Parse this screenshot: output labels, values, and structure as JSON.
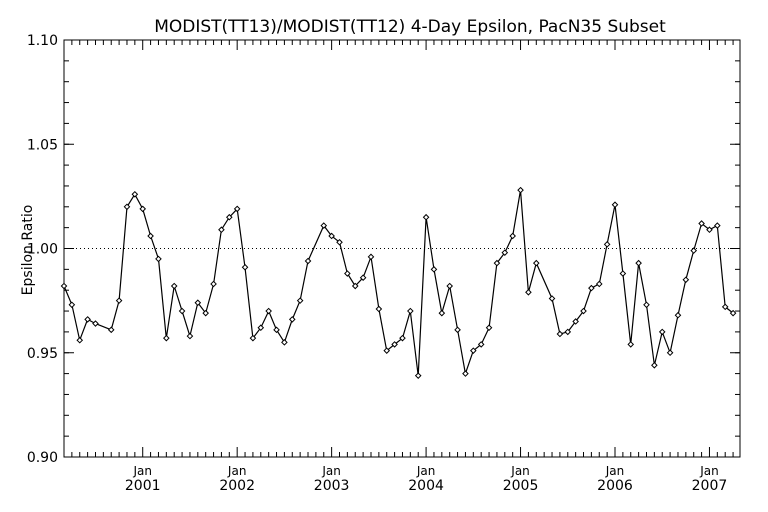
{
  "chart_data": {
    "type": "line",
    "title": "MODIST(TT13)/MODIST(TT12) 4-Day Epsilon, PacN35 Subset",
    "xlabel": "",
    "ylabel": "Epsilon Ratio",
    "ylim": [
      0.9,
      1.1
    ],
    "yticks": [
      "0.90",
      "0.95",
      "1.00",
      "1.05",
      "1.10"
    ],
    "xtick_labels": [
      {
        "month": "Jan",
        "year": "2001"
      },
      {
        "month": "Jan",
        "year": "2002"
      },
      {
        "month": "Jan",
        "year": "2003"
      },
      {
        "month": "Jan",
        "year": "2004"
      },
      {
        "month": "Jan",
        "year": "2005"
      },
      {
        "month": "Jan",
        "year": "2006"
      },
      {
        "month": "Jan",
        "year": "2007"
      }
    ],
    "reference_line": {
      "y": 1.0,
      "style": "dotted"
    },
    "grid": false,
    "marker": "diamond",
    "line_color": "#000000",
    "series": [
      {
        "x": [
          "2000-03-01",
          "2000-04-01",
          "2000-05-01",
          "2000-06-01",
          "2000-07-01",
          "2000-09-01",
          "2000-10-01",
          "2000-11-01",
          "2000-12-01",
          "2001-01-01",
          "2001-02-01",
          "2001-03-01",
          "2001-04-01",
          "2001-05-01",
          "2001-06-01",
          "2001-07-01",
          "2001-08-01",
          "2001-09-01",
          "2001-10-01",
          "2001-11-01",
          "2001-12-01",
          "2002-01-01",
          "2002-02-01",
          "2002-03-01",
          "2002-04-01",
          "2002-05-01",
          "2002-06-01",
          "2002-07-01",
          "2002-08-01",
          "2002-09-01",
          "2002-10-01",
          "2002-12-01",
          "2003-01-01",
          "2003-02-01",
          "2003-03-01",
          "2003-04-01",
          "2003-05-01",
          "2003-06-01",
          "2003-07-01",
          "2003-08-01",
          "2003-09-01",
          "2003-10-01",
          "2003-11-01",
          "2003-12-01",
          "2004-01-01",
          "2004-02-01",
          "2004-03-01",
          "2004-04-01",
          "2004-05-01",
          "2004-06-01",
          "2004-07-01",
          "2004-08-01",
          "2004-09-01",
          "2004-10-01",
          "2004-11-01",
          "2004-12-01",
          "2005-01-01",
          "2005-02-01",
          "2005-03-01",
          "2005-05-01",
          "2005-06-01",
          "2005-07-01",
          "2005-08-01",
          "2005-09-01",
          "2005-10-01",
          "2005-11-01",
          "2005-12-01",
          "2006-01-01",
          "2006-02-01",
          "2006-03-01",
          "2006-04-01",
          "2006-05-01",
          "2006-06-01",
          "2006-07-01",
          "2006-08-01",
          "2006-09-01",
          "2006-10-01",
          "2006-11-01",
          "2006-12-01",
          "2007-01-01",
          "2007-02-01",
          "2007-03-01",
          "2007-04-01"
        ],
        "values": [
          0.982,
          0.973,
          0.956,
          0.966,
          0.964,
          0.961,
          0.975,
          1.02,
          1.026,
          1.019,
          1.006,
          0.995,
          0.957,
          0.982,
          0.97,
          0.958,
          0.974,
          0.969,
          0.983,
          1.009,
          1.015,
          1.019,
          0.991,
          0.957,
          0.962,
          0.97,
          0.961,
          0.955,
          0.966,
          0.975,
          0.994,
          1.011,
          1.006,
          1.003,
          0.988,
          0.982,
          0.986,
          0.996,
          0.971,
          0.951,
          0.954,
          0.957,
          0.97,
          0.939,
          1.015,
          0.99,
          0.969,
          0.982,
          0.961,
          0.94,
          0.951,
          0.954,
          0.962,
          0.993,
          0.998,
          1.006,
          1.028,
          0.979,
          0.993,
          0.976,
          0.959,
          0.96,
          0.965,
          0.97,
          0.981,
          0.983,
          1.002,
          1.021,
          0.988,
          0.954,
          0.993,
          0.973,
          0.944,
          0.96,
          0.95,
          0.968,
          0.985,
          0.999,
          1.012,
          1.009,
          1.011,
          0.972,
          0.969
        ]
      }
    ]
  }
}
